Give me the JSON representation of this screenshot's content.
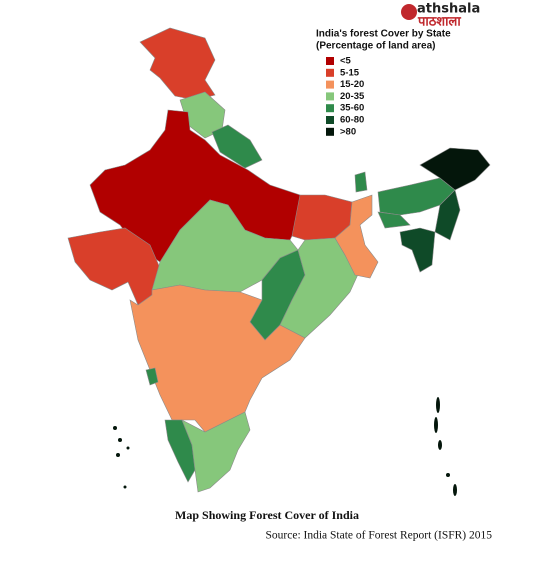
{
  "logo": {
    "latin": "athshala",
    "devanagari": "पाठशाला"
  },
  "legend": {
    "title_line1": "India's  forest Cover by State",
    "title_line2": "(Percentage of land area)",
    "items": [
      {
        "label": "<5",
        "color": "#b10000"
      },
      {
        "label": "5-15",
        "color": "#d93f2a"
      },
      {
        "label": "15-20",
        "color": "#f4925c"
      },
      {
        "label": "20-35",
        "color": "#86c77b"
      },
      {
        "label": "35-60",
        "color": "#2f8a4b"
      },
      {
        "label": "60-80",
        "color": "#0f4a28"
      },
      {
        "label": ">80",
        "color": "#04160b"
      }
    ]
  },
  "caption": "Map Showing Forest Cover of India",
  "source": "Source: India State of Forest Report (ISFR) 2015"
}
